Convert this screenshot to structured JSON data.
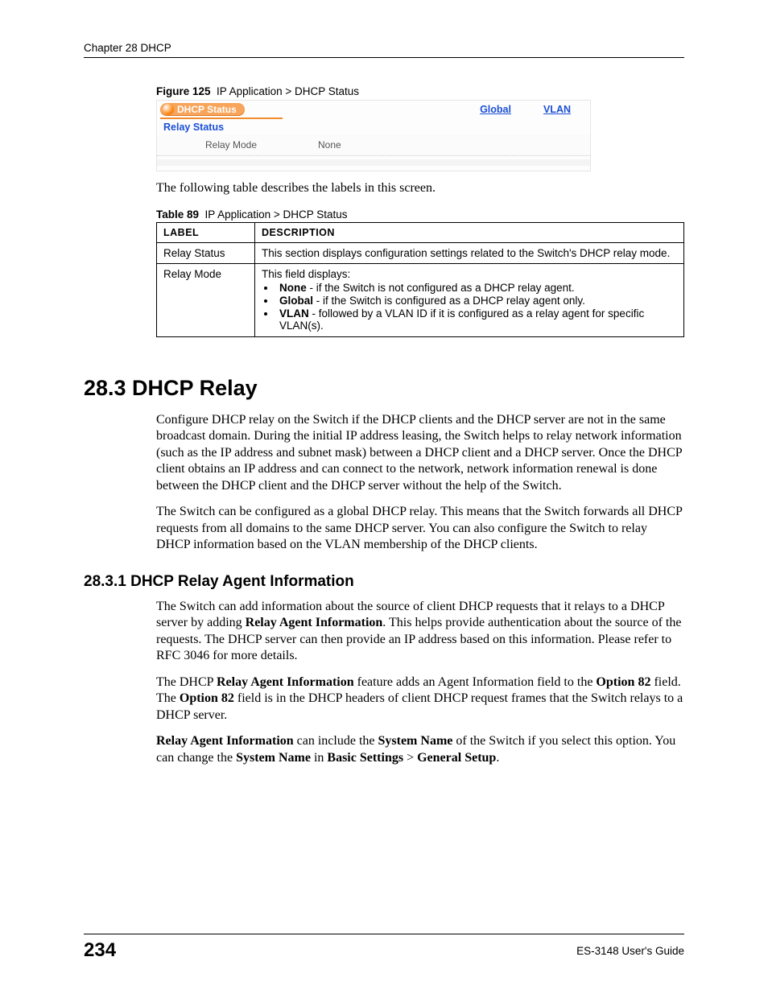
{
  "header": {
    "chapter": "Chapter 28 DHCP"
  },
  "figure": {
    "label": "Figure 125",
    "title": "IP Application > DHCP Status",
    "tab_title": "DHCP Status",
    "links": {
      "global": "Global",
      "vlan": "VLAN"
    },
    "subhead": "Relay Status",
    "row_label": "Relay Mode",
    "row_value": "None"
  },
  "screen_desc": "The following table describes the labels in this screen.",
  "table": {
    "label": "Table 89",
    "title": "IP Application > DHCP Status",
    "headers": {
      "c1": "LABEL",
      "c2": "DESCRIPTION"
    },
    "rows": [
      {
        "label": "Relay Status",
        "desc": "This section displays configuration settings related to the Switch's DHCP relay mode."
      },
      {
        "label": "Relay Mode",
        "intro": "This field displays:",
        "bullets": [
          {
            "b": "None",
            "rest": " - if the Switch is not configured as a DHCP relay agent."
          },
          {
            "b": "Global",
            "rest": " - if the Switch is configured as a DHCP relay agent only."
          },
          {
            "b": "VLAN",
            "rest": " - followed by a VLAN ID if it is configured as a relay agent for specific VLAN(s)."
          }
        ]
      }
    ]
  },
  "section": {
    "number_title": "28.3  DHCP Relay",
    "p1": "Configure DHCP relay on the Switch if the DHCP clients and the DHCP server are not in the same broadcast domain. During the initial IP address leasing, the Switch helps to relay network information (such as the IP address and subnet mask) between a DHCP client and a DHCP server. Once the DHCP client obtains an IP address and can connect to the network, network information renewal is done between the DHCP client and the DHCP server without the help of the Switch.",
    "p2": "The Switch can be configured as a global DHCP relay. This means that the Switch forwards all DHCP requests from all domains to the same DHCP server. You can also configure the Switch to relay DHCP information based on the VLAN membership of the DHCP clients."
  },
  "subsection": {
    "number_title": "28.3.1  DHCP Relay Agent Information",
    "p1_a": "The Switch can add information about the source of client DHCP requests that it relays to a DHCP server by adding ",
    "p1_b1": "Relay Agent Information",
    "p1_c": ". This helps provide authentication about the source of the requests. The DHCP server can then provide an IP address based on this information. Please refer to RFC 3046 for more details.",
    "p2_a": "The DHCP ",
    "p2_b1": "Relay Agent Information",
    "p2_c": " feature adds an Agent Information field to the ",
    "p2_b2": "Option 82",
    "p2_d": " field. The ",
    "p2_b3": "Option 82",
    "p2_e": " field is in the DHCP headers of client DHCP request frames that the Switch relays to a DHCP server.",
    "p3_b1": "Relay Agent Information",
    "p3_a": " can include the ",
    "p3_b2": "System Name",
    "p3_c": " of the Switch if you select this option. You can change the ",
    "p3_b3": "System Name",
    "p3_d": " in ",
    "p3_b4": "Basic Settings",
    "p3_e": " > ",
    "p3_b5": "General Setup",
    "p3_f": "."
  },
  "footer": {
    "page": "234",
    "guide": "ES-3148 User's Guide"
  }
}
